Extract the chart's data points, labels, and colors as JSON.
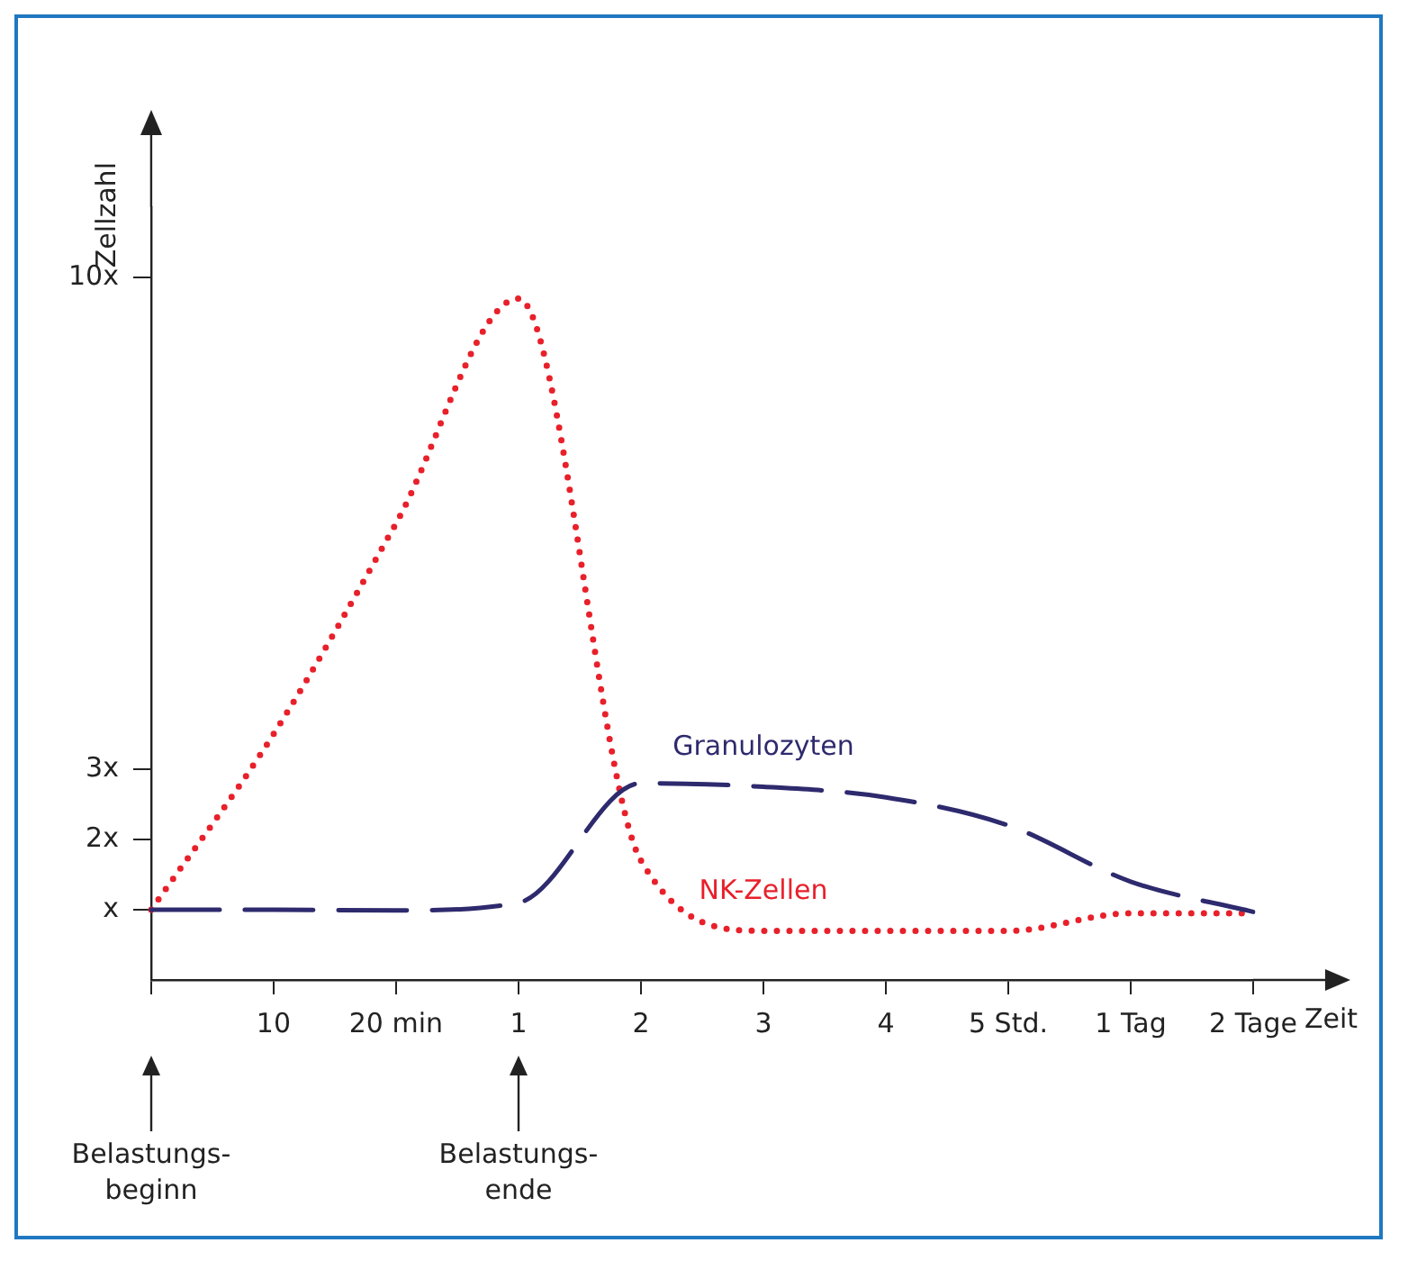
{
  "chart_data": {
    "type": "line",
    "xlabel": "Zeit",
    "ylabel": "Zellzahl",
    "categories": [
      null,
      "10",
      "20 min",
      "1",
      "2",
      "3",
      "4",
      "5 Std.",
      "1 Tag",
      "2 Tage"
    ],
    "series": [
      {
        "name": "Granulozyten",
        "color": "#2e2a6e",
        "line_style": "dashed",
        "values": [
          1,
          1,
          0.99,
          1.1,
          2.8,
          2.75,
          2.6,
          2.2,
          1.4,
          0.97
        ]
      },
      {
        "name": "NK-Zellen",
        "color": "#e8202a",
        "line_style": "dotted",
        "values": [
          1,
          3.5,
          6.5,
          9.7,
          1.7,
          0.7,
          0.7,
          0.7,
          0.95,
          0.95
        ]
      }
    ],
    "ylim": [
      0,
      11
    ],
    "yticks": [
      {
        "value": 1,
        "label": "x"
      },
      {
        "value": 2,
        "label": "2x"
      },
      {
        "value": 3,
        "label": "3x"
      },
      {
        "value": 10,
        "label": "10x"
      }
    ],
    "grid": false,
    "legend": false,
    "marker": "none",
    "annotations": [
      "Belastungs-beginn",
      "Belastungs-ende"
    ]
  }
}
